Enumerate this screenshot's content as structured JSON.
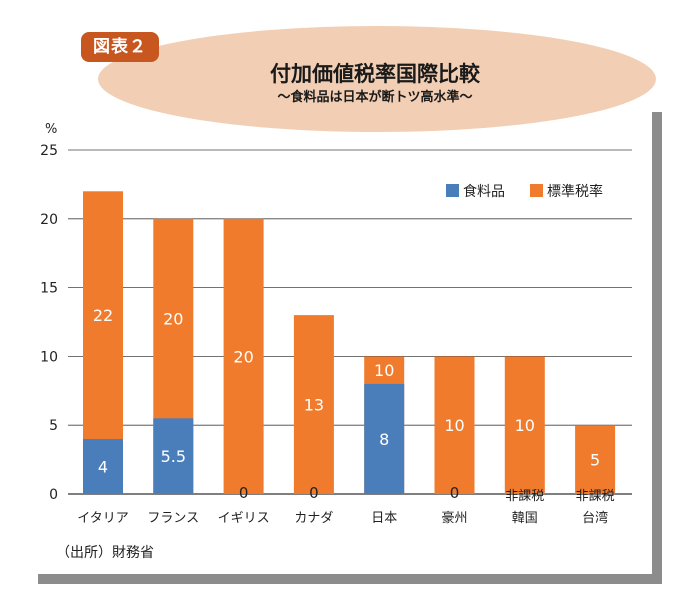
{
  "header": {
    "badge": "図表２",
    "title": "付加価値税率国際比較",
    "subtitle": "〜食料品は日本が断トツ高水準〜"
  },
  "source": "（出所）財務省",
  "colors": {
    "food": "#4a7ebb",
    "standard": "#f07b2c",
    "badge": "#c8561f",
    "ellipse": "#f2cfb4"
  },
  "chart_data": {
    "type": "bar",
    "stacked": true,
    "ylabel": "%",
    "ylim": [
      0,
      25
    ],
    "yticks": [
      0,
      5,
      10,
      15,
      20,
      25
    ],
    "grid": true,
    "legend_position": "top-right",
    "categories": [
      [
        "イタリア"
      ],
      [
        "フランス"
      ],
      [
        "イギリス"
      ],
      [
        "カナダ"
      ],
      [
        "日本"
      ],
      [
        "豪州"
      ],
      [
        "非課税",
        "韓国"
      ],
      [
        "非課税",
        "台湾"
      ]
    ],
    "series": [
      {
        "name": "食料品",
        "color": "#4a7ebb",
        "values": [
          4,
          5.5,
          0,
          0,
          8,
          0,
          null,
          null
        ]
      },
      {
        "name": "標準税率",
        "color": "#f07b2c",
        "values": [
          22,
          20,
          20,
          13,
          10,
          10,
          10,
          5
        ]
      }
    ],
    "data_labels": {
      "food": [
        "4",
        "5.5",
        "0",
        "0",
        "8",
        "0",
        "",
        ""
      ],
      "standard": [
        "22",
        "20",
        "20",
        "13",
        "10",
        "10",
        "10",
        "5"
      ]
    }
  }
}
